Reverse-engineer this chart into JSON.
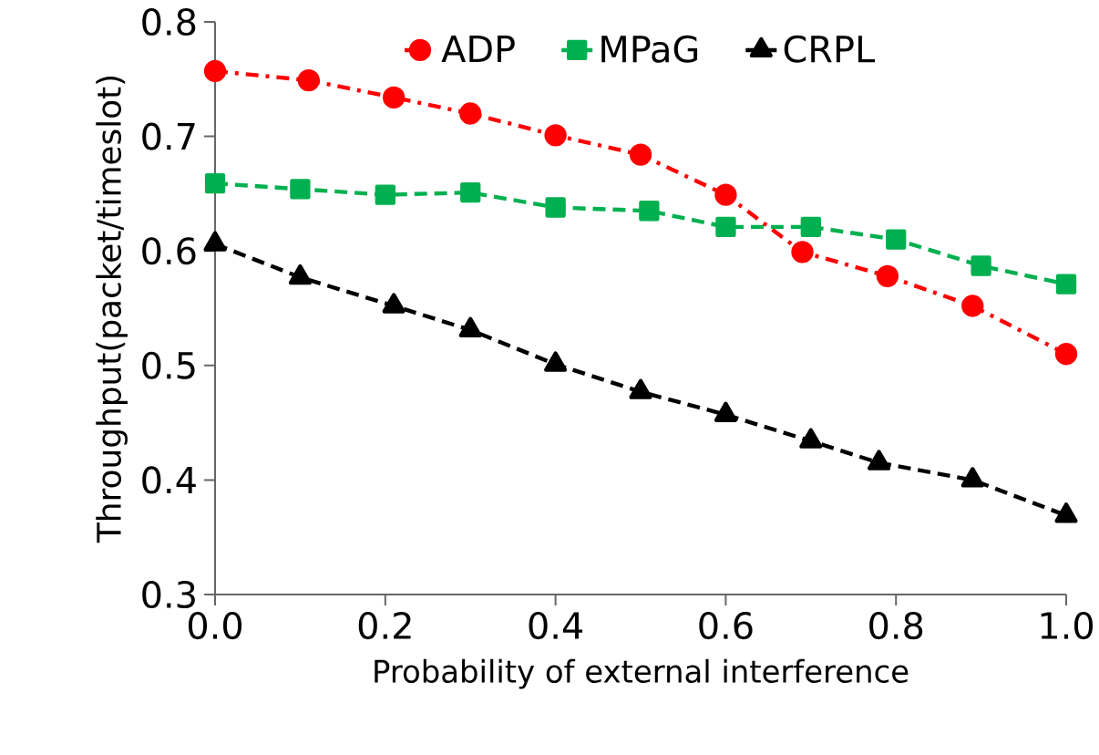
{
  "chart_data": {
    "type": "line",
    "xlabel": "Probability of external interference",
    "ylabel": "Throughput(packet/timeslot)",
    "xlim": [
      0,
      1
    ],
    "xticks": [
      {
        "value": 0,
        "label": "0.0"
      },
      0.2,
      0.4,
      0.6,
      0.8,
      {
        "value": 1,
        "label": "1.0"
      }
    ],
    "ylim": [
      0.3,
      0.8
    ],
    "yticks": [
      0.3,
      0.4,
      0.5,
      0.6,
      0.7,
      0.8
    ],
    "grid": false,
    "legend": "top",
    "series": [
      {
        "name": "ADP",
        "color": "#ff0000",
        "marker": "circle",
        "line_style": "dashdot",
        "x": [
          0,
          0.11,
          0.21,
          0.3,
          0.4,
          0.5,
          0.6,
          0.69,
          0.79,
          0.89,
          1.0
        ],
        "values": [
          0.757,
          0.749,
          0.734,
          0.72,
          0.701,
          0.684,
          0.649,
          0.599,
          0.578,
          0.552,
          0.51
        ]
      },
      {
        "name": "MPaG",
        "color": "#00b050",
        "marker": "square",
        "line_style": "dashed",
        "x": [
          0,
          0.1,
          0.2,
          0.3,
          0.4,
          0.51,
          0.6,
          0.7,
          0.8,
          0.9,
          1.0
        ],
        "values": [
          0.659,
          0.654,
          0.649,
          0.651,
          0.638,
          0.635,
          0.621,
          0.621,
          0.61,
          0.587,
          0.571
        ]
      },
      {
        "name": "CRPL",
        "color": "#000000",
        "marker": "triangle",
        "line_style": "dashed",
        "x": [
          0,
          0.1,
          0.21,
          0.3,
          0.4,
          0.5,
          0.6,
          0.7,
          0.78,
          0.89,
          1.0
        ],
        "values": [
          0.606,
          0.577,
          0.552,
          0.531,
          0.501,
          0.477,
          0.457,
          0.434,
          0.415,
          0.4,
          0.369
        ]
      }
    ]
  }
}
